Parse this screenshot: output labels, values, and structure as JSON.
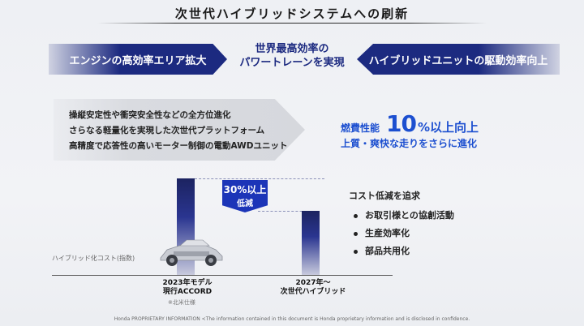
{
  "title": "次世代ハイブリッドシステムへの刷新",
  "banners": {
    "left": "エンジンの高効率エリア拡大",
    "center_line1": "世界最高効率の",
    "center_line2": "パワートレーンを実現",
    "right": "ハイブリッドユニットの駆動効率向上"
  },
  "features": [
    "操縦安定性や衝突安全性などの全方位進化",
    "さらなる軽量化を実現した次世代プラットフォーム",
    "高精度で応答性の高いモーター制御の電動AWDユニット"
  ],
  "fuel": {
    "label": "燃費性能",
    "number": "10",
    "suffix": "%以上向上",
    "subtitle": "上質・爽快な走りをさらに進化"
  },
  "cost_chart": {
    "ylabel": "ハイブリッド化コスト(指数)",
    "reduction_line1": "30%以上",
    "reduction_line2": "低減",
    "bar1_line1": "2023年モデル",
    "bar1_line2": "現行ACCORD",
    "bar1_note": "※北米仕様",
    "bar2_line1": "2027年～",
    "bar2_line2": "次世代ハイブリッド"
  },
  "cost": {
    "title": "コスト低減を追求",
    "items": [
      "お取引様との協創活動",
      "生産効率化",
      "部品共用化"
    ]
  },
  "footer": "Honda PROPRIETARY INFORMATION <The information contained in this document is Honda proprietary information and is disclosed in confidence.",
  "colors": {
    "navy": "#1c2a80",
    "blue": "#1c4fd0",
    "badge": "#1c35b8"
  }
}
